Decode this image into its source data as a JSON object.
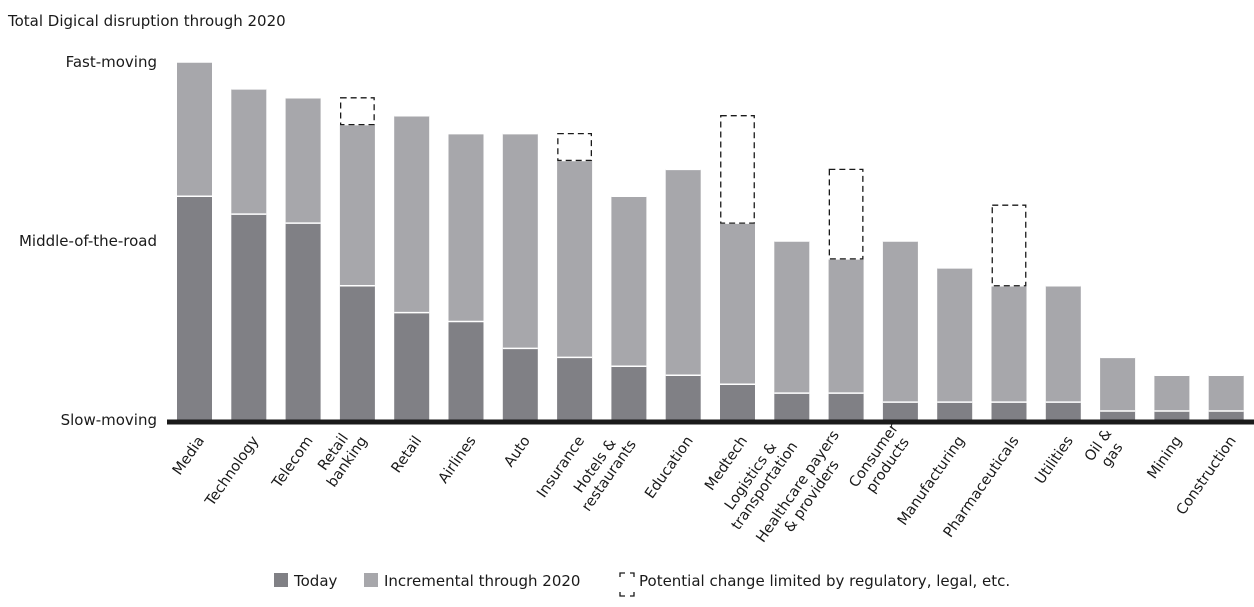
{
  "chart_data": {
    "type": "bar",
    "title": "Total Digical disruption through 2020",
    "stacked": true,
    "y_tick_labels": [
      "Fast-moving",
      "Middle-of-the-road",
      "Slow-moving"
    ],
    "y_tick_values": [
      100,
      50,
      0
    ],
    "ylim": [
      0,
      100
    ],
    "categories": [
      [
        "Media"
      ],
      [
        "Technology"
      ],
      [
        "Telecom"
      ],
      [
        "Retail",
        "banking"
      ],
      [
        "Retail"
      ],
      [
        "Airlines"
      ],
      [
        "Auto"
      ],
      [
        "Insurance"
      ],
      [
        "Hotels &",
        "restaurants"
      ],
      [
        "Education"
      ],
      [
        "Medtech"
      ],
      [
        "Logistics &",
        "transportation"
      ],
      [
        "Healthcare payers",
        "& providers"
      ],
      [
        "Consumer",
        "products"
      ],
      [
        "Manufacturing"
      ],
      [
        "Pharmaceuticals"
      ],
      [
        "Utilities"
      ],
      [
        "Oil &",
        "gas"
      ],
      [
        "Mining"
      ],
      [
        "Construction"
      ]
    ],
    "series": [
      {
        "name": "Today",
        "color": "#808085",
        "values": [
          62.5,
          57.5,
          55,
          37.5,
          30,
          27.5,
          20,
          17.5,
          15,
          12.5,
          10,
          7.5,
          7.5,
          5,
          5,
          5,
          5,
          2.5,
          2.5,
          2.5
        ]
      },
      {
        "name": "Incremental through 2020",
        "color": "#a7a7ab",
        "values": [
          37.5,
          35,
          35,
          45,
          55,
          52.5,
          60,
          55,
          47.5,
          57.5,
          45,
          42.5,
          37.5,
          45,
          37.5,
          32.5,
          32.5,
          15,
          10,
          10
        ]
      },
      {
        "name": "Potential change limited by regulatory, legal, etc.",
        "style": "dashed-outline",
        "values": [
          0,
          0,
          0,
          7.5,
          0,
          0,
          0,
          7.5,
          0,
          0,
          30,
          0,
          25,
          0,
          0,
          22.5,
          0,
          0,
          0,
          0
        ]
      }
    ],
    "legend": {
      "position": "bottom",
      "items": [
        "Today",
        "Incremental through 2020",
        "Potential change limited by regulatory, legal, etc."
      ]
    },
    "grid": false
  }
}
